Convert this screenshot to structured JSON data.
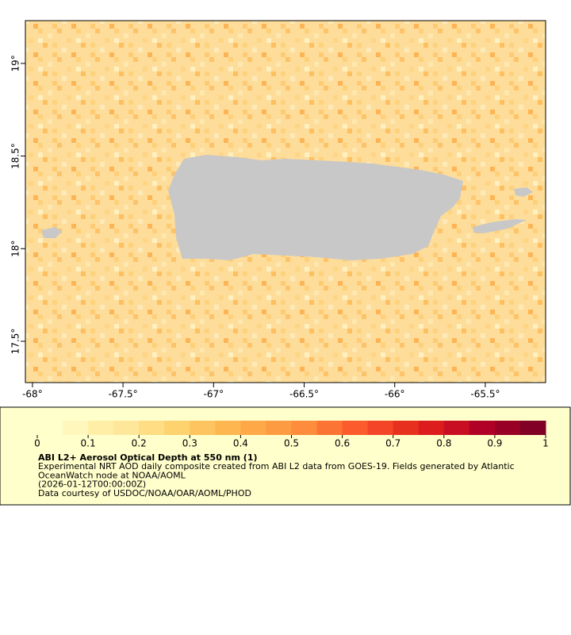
{
  "map": {
    "xlim": [
      -68.039,
      -65.167
    ],
    "ylim": [
      17.277,
      19.231
    ],
    "xticks": [
      {
        "value": -68,
        "label": "-68°"
      },
      {
        "value": -67.5,
        "label": "-67.5°"
      },
      {
        "value": -67,
        "label": "-67°"
      },
      {
        "value": -66.5,
        "label": "-66.5°"
      },
      {
        "value": -66,
        "label": "-66°"
      },
      {
        "value": -65.5,
        "label": "-65.5°"
      }
    ],
    "yticks": [
      {
        "value": 17.5,
        "label": "17.5°"
      },
      {
        "value": 18,
        "label": "18°"
      },
      {
        "value": 18.5,
        "label": "18.5°"
      },
      {
        "value": 19,
        "label": "19°"
      }
    ]
  },
  "colorbar": {
    "lim": [
      0,
      1
    ],
    "ticks": [
      0,
      0.1,
      0.2,
      0.3,
      0.4,
      0.5,
      0.6,
      0.7,
      0.8,
      0.9,
      1
    ],
    "colors": [
      "#ffffcc",
      "#fff7bc",
      "#ffefa6",
      "#fee79a",
      "#fedd84",
      "#fed26e",
      "#fec45f",
      "#feb650",
      "#fea848",
      "#fd9b42",
      "#fd8d3c",
      "#fc7434",
      "#fb5b2d",
      "#f44528",
      "#e8301f",
      "#dc1c1d",
      "#c80e22",
      "#b00026",
      "#980026",
      "#800026"
    ]
  },
  "legend": {
    "title": "ABI L2+ Aerosol Optical Depth at 550 nm (1)",
    "lines": [
      "Experimental NRT AOD daily composite created from ABI L2 data from GOES-19. Fields generated by Atlantic",
      "OceanWatch node at NOAA/AOML",
      "(2026-01-12T00:00:00Z)",
      "Data courtesy of USDOC/NOAA/OAR/AOML/PHOD"
    ]
  }
}
